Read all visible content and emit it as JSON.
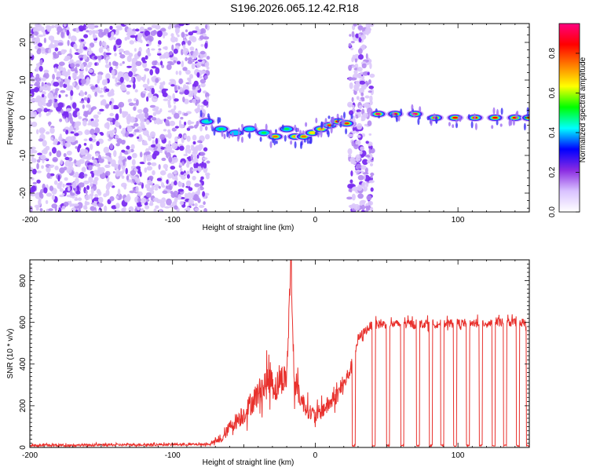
{
  "title": "S196.2026.065.12.42.R18",
  "colors": {
    "snr_line": "#e8302c",
    "speckle": "#7a2cf0",
    "frame": "#000000"
  },
  "chart_data": [
    {
      "type": "heatmap",
      "name": "spectrogram",
      "xlabel": "Height of straight line (km)",
      "ylabel": "Frequency (Hz)",
      "xlim": [
        -200,
        150
      ],
      "ylim": [
        -25,
        25
      ],
      "xticks": [
        -200,
        -100,
        0,
        100
      ],
      "yticks": [
        -20,
        -10,
        0,
        10,
        20
      ],
      "colorbar": {
        "label": "Normalized spectral amplitude",
        "range": [
          0,
          0.95
        ],
        "ticks": [
          "0.0",
          "0.2",
          "0.4",
          "0.6",
          "0.8"
        ],
        "tick_values": [
          0,
          0.2,
          0.4,
          0.6,
          0.8
        ],
        "colors": [
          "#ffffff",
          "#d9c2ff",
          "#8a2be2",
          "#0000ff",
          "#00ffff",
          "#00ff00",
          "#ffff00",
          "#ff7f00",
          "#ff0000",
          "#ff0080"
        ]
      },
      "noise_region_km": [
        -200,
        -75
      ],
      "gap_noise_km": [
        24,
        40
      ],
      "ridge_km": [
        -76,
        -66,
        -56,
        -46,
        -36,
        -28,
        -20,
        -14,
        -8,
        -2,
        4,
        10,
        16,
        22,
        28,
        44,
        56,
        70,
        84,
        98,
        112,
        126,
        140,
        150
      ],
      "ridge_hz": [
        -1,
        -3,
        -4,
        -3,
        -4,
        -5,
        -3,
        -5,
        -5,
        -4,
        -3,
        -2,
        -1,
        -1.5,
        -1,
        1,
        1,
        1,
        0,
        0,
        0,
        0,
        0,
        0
      ],
      "ridge_peak": [
        0.45,
        0.5,
        0.4,
        0.45,
        0.5,
        0.75,
        0.5,
        0.7,
        0.75,
        0.65,
        0.7,
        0.8,
        0.85,
        0.8,
        0.8,
        0.95,
        0.9,
        0.95,
        0.9,
        0.85,
        0.85,
        0.85,
        0.85,
        0.8
      ]
    },
    {
      "type": "line",
      "name": "snr",
      "xlabel": "Height of straight line (km)",
      "ylabel": "SNR (10 * v/v)",
      "xlim": [
        -200,
        150
      ],
      "ylim": [
        0,
        900
      ],
      "xticks": [
        -200,
        -100,
        0,
        100
      ],
      "yticks": [
        0,
        200,
        400,
        600,
        800
      ],
      "series": [
        {
          "name": "SNR",
          "x": [
            -200,
            -75,
            -65,
            -60,
            -55,
            -50,
            -45,
            -40,
            -35,
            -31,
            -28,
            -25,
            -20,
            -17,
            -15,
            -10,
            -5,
            0,
            5,
            10,
            15,
            20,
            25,
            28,
            30,
            35,
            40,
            150
          ],
          "y": [
            10,
            15,
            40,
            100,
            130,
            160,
            210,
            260,
            300,
            340,
            280,
            320,
            340,
            900,
            330,
            230,
            180,
            150,
            180,
            210,
            250,
            300,
            380,
            460,
            520,
            560,
            590,
            600
          ],
          "spread": [
            8,
            8,
            25,
            45,
            60,
            70,
            80,
            95,
            110,
            120,
            110,
            100,
            100,
            100,
            100,
            70,
            60,
            50,
            60,
            60,
            60,
            60,
            50,
            40,
            35,
            30,
            30,
            30
          ]
        }
      ],
      "dropouts_km": [
        [
          26,
          28
        ],
        [
          40,
          42
        ],
        [
          50,
          52
        ],
        [
          60,
          62
        ],
        [
          71,
          73
        ],
        [
          80,
          82
        ],
        [
          88,
          90
        ],
        [
          97,
          99
        ],
        [
          106,
          108
        ],
        [
          115,
          117
        ],
        [
          124,
          126
        ],
        [
          132,
          134
        ],
        [
          141,
          143
        ],
        [
          148,
          150
        ]
      ]
    }
  ]
}
